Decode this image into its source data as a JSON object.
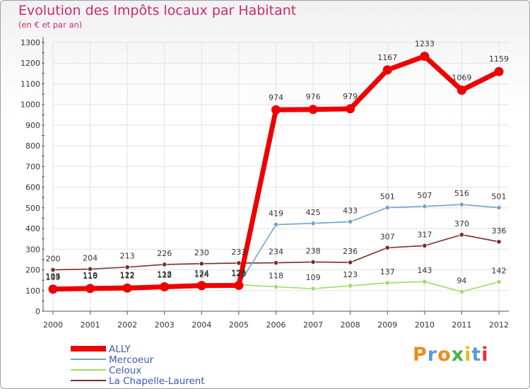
{
  "header": {
    "title": "Evolution des Impôts locaux par Habitant",
    "subtitle": "(en € et par an)"
  },
  "logo": {
    "letters": [
      "P",
      "r",
      "o",
      "x",
      "i",
      "t",
      "i"
    ],
    "colors": [
      "#f08a1c",
      "#5a9bd5",
      "#f08a1c",
      "#4ab04a",
      "#e0c020",
      "#5a9bd5",
      "#e03030"
    ]
  },
  "chart_data": {
    "type": "line",
    "title": "Evolution des Impôts locaux par Habitant",
    "subtitle": "(en € et par an)",
    "xlabel": "",
    "ylabel": "",
    "ylim": [
      0,
      1300
    ],
    "yticks": [
      0,
      100,
      200,
      300,
      400,
      500,
      600,
      700,
      800,
      900,
      1000,
      1100,
      1200,
      1300
    ],
    "x": [
      "2000",
      "2001",
      "2002",
      "2003",
      "2004",
      "2005",
      "2006",
      "2007",
      "2008",
      "2009",
      "2010",
      "2011",
      "2012"
    ],
    "series": [
      {
        "name": "ALLY",
        "color": "#ee0000",
        "values": [
          107,
          110,
          112,
          118,
          124,
          125,
          974,
          976,
          979,
          1167,
          1233,
          1069,
          1159
        ]
      },
      {
        "name": "Mercoeur",
        "color": "#6fa2cf",
        "values": [
          115,
          119,
          122,
          122,
          124,
          128,
          419,
          425,
          433,
          501,
          507,
          516,
          501
        ]
      },
      {
        "name": "Celoux",
        "color": "#99dd66",
        "values": [
          109,
          118,
          122,
          122,
          124,
          128,
          118,
          109,
          123,
          137,
          143,
          94,
          142
        ]
      },
      {
        "name": "La Chapelle-Laurent",
        "color": "#7b2b2b",
        "values": [
          200,
          204,
          213,
          226,
          230,
          233,
          234,
          238,
          236,
          307,
          317,
          370,
          336
        ]
      }
    ],
    "legend": "bottom-left"
  }
}
